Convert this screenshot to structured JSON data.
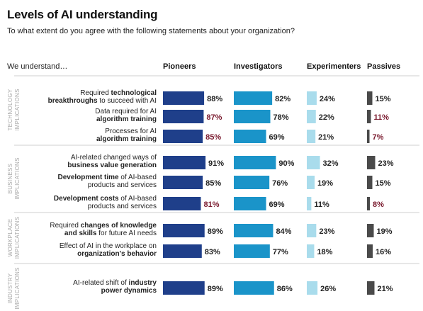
{
  "title": "Levels of AI understanding",
  "subtitle": "To what extent do you agree with the following statements about your organization?",
  "chart_data": {
    "type": "bar",
    "row_header": "We understand…",
    "series": [
      {
        "name": "Pioneers",
        "color": "#1f3f8a",
        "values": [
          88,
          87,
          85,
          91,
          85,
          81,
          89,
          83,
          89
        ]
      },
      {
        "name": "Investigators",
        "color": "#1a94c9",
        "values": [
          82,
          78,
          69,
          90,
          76,
          69,
          84,
          77,
          86
        ]
      },
      {
        "name": "Experimenters",
        "color": "#a9dcec",
        "values": [
          24,
          22,
          21,
          32,
          19,
          11,
          23,
          18,
          26
        ]
      },
      {
        "name": "Passives",
        "color": "#4a4a4a",
        "values": [
          15,
          11,
          7,
          23,
          15,
          8,
          19,
          16,
          21
        ]
      }
    ],
    "highlight_color": "#7a1a2e",
    "highlighted": [
      {
        "row": 1,
        "series": 0
      },
      {
        "row": 2,
        "series": 0
      },
      {
        "row": 5,
        "series": 0
      },
      {
        "row": 1,
        "series": 3
      },
      {
        "row": 2,
        "series": 3
      },
      {
        "row": 5,
        "series": 3
      }
    ],
    "groups": [
      {
        "lines": [
          "TECHNOLOGY",
          "IMPLICATIONS"
        ],
        "rows": [
          0,
          1,
          2
        ]
      },
      {
        "lines": [
          "BUSINESS",
          "IMPLICATIONS"
        ],
        "rows": [
          3,
          4,
          5
        ]
      },
      {
        "lines": [
          "WORKPLACE",
          "IMPLICATIONS"
        ],
        "rows": [
          6,
          7
        ]
      },
      {
        "lines": [
          "INDUSTRY",
          "IMPLICATIONS"
        ],
        "rows": [
          8
        ]
      }
    ],
    "rows": [
      {
        "lines": [
          [
            {
              "t": "Required ",
              "b": false
            },
            {
              "t": "technological",
              "b": true
            }
          ],
          [
            {
              "t": "breakthroughs",
              "b": true
            },
            {
              "t": " to succeed with AI",
              "b": false
            }
          ]
        ]
      },
      {
        "lines": [
          [
            {
              "t": "Data required for AI",
              "b": false
            }
          ],
          [
            {
              "t": "algorithm training",
              "b": true
            }
          ]
        ]
      },
      {
        "lines": [
          [
            {
              "t": "Processes for AI",
              "b": false
            }
          ],
          [
            {
              "t": "algorithm training",
              "b": true
            }
          ]
        ]
      },
      {
        "lines": [
          [
            {
              "t": "AI-related changed ways of",
              "b": false
            }
          ],
          [
            {
              "t": "business value generation",
              "b": true
            }
          ]
        ]
      },
      {
        "lines": [
          [
            {
              "t": "Development time",
              "b": true
            },
            {
              "t": " of AI-based",
              "b": false
            }
          ],
          [
            {
              "t": "products and services",
              "b": false
            }
          ]
        ]
      },
      {
        "lines": [
          [
            {
              "t": "Development costs",
              "b": true
            },
            {
              "t": " of AI-based",
              "b": false
            }
          ],
          [
            {
              "t": "products and services",
              "b": false
            }
          ]
        ]
      },
      {
        "lines": [
          [
            {
              "t": "Required ",
              "b": false
            },
            {
              "t": "changes of knowledge",
              "b": true
            }
          ],
          [
            {
              "t": "and skills",
              "b": true
            },
            {
              "t": " for future AI needs",
              "b": false
            }
          ]
        ]
      },
      {
        "lines": [
          [
            {
              "t": "Effect of AI in the workplace on",
              "b": false
            }
          ],
          [
            {
              "t": "organization's behavior",
              "b": true
            }
          ]
        ]
      },
      {
        "lines": [
          [
            {
              "t": "AI-related shift of ",
              "b": false
            },
            {
              "t": "industry",
              "b": true
            }
          ],
          [
            {
              "t": "power dynamics",
              "b": true
            }
          ]
        ]
      }
    ],
    "value_suffix": "%",
    "xlim": [
      0,
      100
    ],
    "grid": false,
    "legend": "column headers above bars"
  }
}
